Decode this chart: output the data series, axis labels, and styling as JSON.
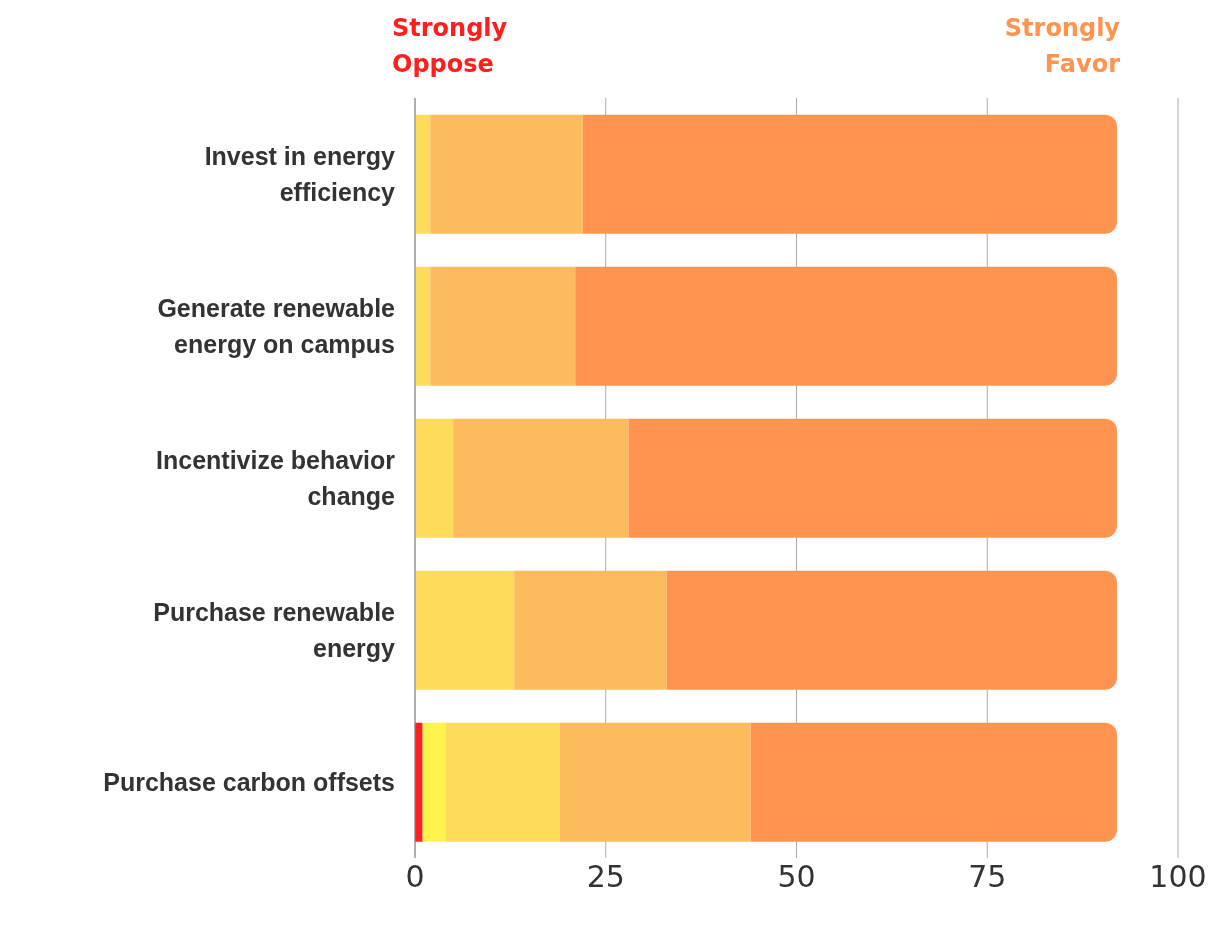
{
  "chart_data": {
    "type": "bar",
    "orientation": "horizontal",
    "stacked": true,
    "categories": [
      "Invest in energy efficiency",
      "Generate renewable energy on campus",
      "Incentivize behavior change",
      "Purchase renewable energy",
      "Purchase carbon offsets"
    ],
    "series": [
      {
        "color": "#ff1f1f",
        "values": [
          0,
          0,
          0,
          0,
          1
        ]
      },
      {
        "color": "#fef44c",
        "values": [
          0,
          0,
          0,
          0,
          3
        ]
      },
      {
        "color": "#fddc5c",
        "values": [
          2,
          2,
          5,
          13,
          15
        ]
      },
      {
        "color": "#fcbb5c",
        "values": [
          20,
          19,
          23,
          20,
          25
        ]
      },
      {
        "color": "#ff9350",
        "values": [
          70,
          71,
          64,
          59,
          48
        ]
      }
    ],
    "xlim": [
      0,
      100
    ],
    "xticks": [
      0,
      25,
      50,
      75,
      100
    ],
    "grid": "x",
    "legend": false,
    "annotations": [
      "Strongly Oppose",
      "Strongly Favor"
    ]
  }
}
